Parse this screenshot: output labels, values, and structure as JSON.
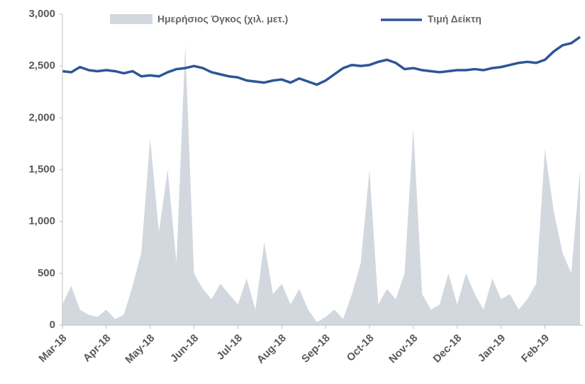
{
  "chart_data": {
    "type": "area-line",
    "categories": [
      "Mar-18",
      null,
      null,
      null,
      null,
      "Apr-18",
      null,
      null,
      null,
      null,
      "May-18",
      null,
      null,
      null,
      null,
      "Jun-18",
      null,
      null,
      null,
      null,
      "Jul-18",
      null,
      null,
      null,
      null,
      "Aug-18",
      null,
      null,
      null,
      null,
      "Sep-18",
      null,
      null,
      null,
      null,
      "Oct-18",
      null,
      null,
      null,
      null,
      "Nov-18",
      null,
      null,
      null,
      null,
      "Dec-18",
      null,
      null,
      null,
      null,
      "Jan-19",
      null,
      null,
      null,
      null,
      "Feb-19",
      null,
      null,
      null,
      null
    ],
    "series": [
      {
        "name": "Ημερήσιος Όγκος (χιλ. μετ.)",
        "color": "#d3d8df",
        "values": [
          200,
          380,
          150,
          100,
          80,
          150,
          60,
          100,
          380,
          700,
          1800,
          900,
          1500,
          600,
          2700,
          500,
          350,
          250,
          400,
          300,
          200,
          450,
          150,
          800,
          300,
          400,
          200,
          350,
          150,
          30,
          80,
          150,
          60,
          300,
          600,
          1500,
          200,
          350,
          250,
          500,
          1900,
          300,
          150,
          200,
          500,
          200,
          500,
          300,
          150,
          450,
          250,
          300,
          150,
          250,
          400,
          1700,
          1100,
          700,
          500,
          1500
        ]
      },
      {
        "name": "Τιμή Δείκτη",
        "color": "#2e5597",
        "values": [
          2450,
          2440,
          2490,
          2460,
          2450,
          2460,
          2450,
          2430,
          2450,
          2400,
          2410,
          2400,
          2440,
          2470,
          2480,
          2500,
          2480,
          2440,
          2420,
          2400,
          2390,
          2360,
          2350,
          2340,
          2360,
          2370,
          2340,
          2380,
          2350,
          2320,
          2360,
          2420,
          2480,
          2510,
          2500,
          2510,
          2540,
          2560,
          2530,
          2470,
          2480,
          2460,
          2450,
          2440,
          2450,
          2460,
          2460,
          2470,
          2460,
          2480,
          2490,
          2510,
          2530,
          2540,
          2530,
          2560,
          2640,
          2700,
          2720,
          2780
        ]
      }
    ],
    "ylim": [
      0,
      3000
    ],
    "yticks": [
      0,
      500,
      {
        "value": 1000,
        "label": "1,000"
      },
      {
        "value": 1500,
        "label": "1,500"
      },
      {
        "value": 2000,
        "label": "2,000"
      },
      {
        "value": 2500,
        "label": "2,500"
      },
      {
        "value": 3000,
        "label": "3,000"
      }
    ]
  }
}
